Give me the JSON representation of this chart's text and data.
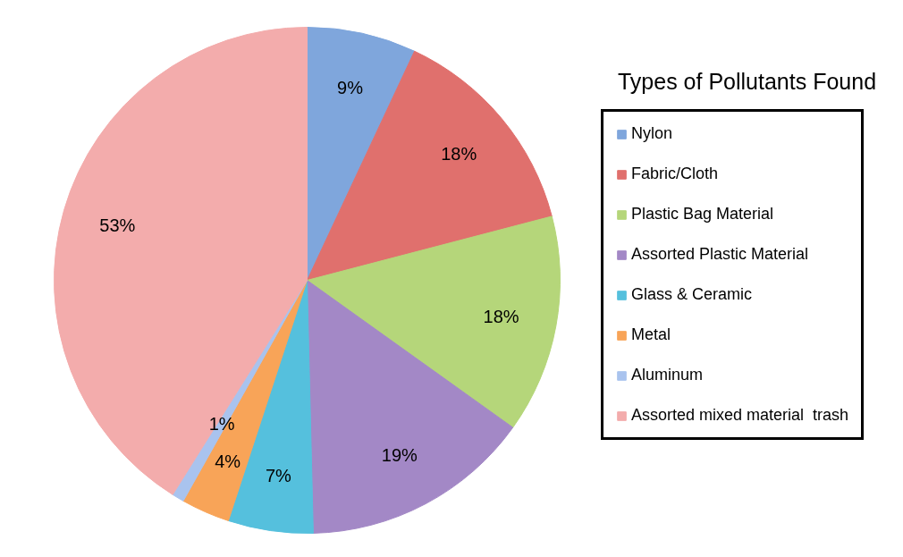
{
  "chart_data": {
    "type": "pie",
    "title": "Types of Pollutants Found",
    "categories": [
      "Nylon",
      "Fabric/Cloth",
      "Plastic Bag Material",
      "Assorted Plastic Material",
      "Glass & Ceramic",
      "Metal",
      "Aluminum",
      "Assorted mixed material  trash"
    ],
    "values": [
      9,
      18,
      18,
      19,
      7,
      4,
      1,
      53
    ],
    "colors": [
      "#7fa6dc",
      "#e0706d",
      "#b5d67a",
      "#a388c6",
      "#55c0dd",
      "#f8a458",
      "#a9c3ee",
      "#f3acac"
    ],
    "value_labels": [
      "9%",
      "18%",
      "18%",
      "19%",
      "7%",
      "4%",
      "1%",
      "53%"
    ],
    "legend": "right"
  }
}
